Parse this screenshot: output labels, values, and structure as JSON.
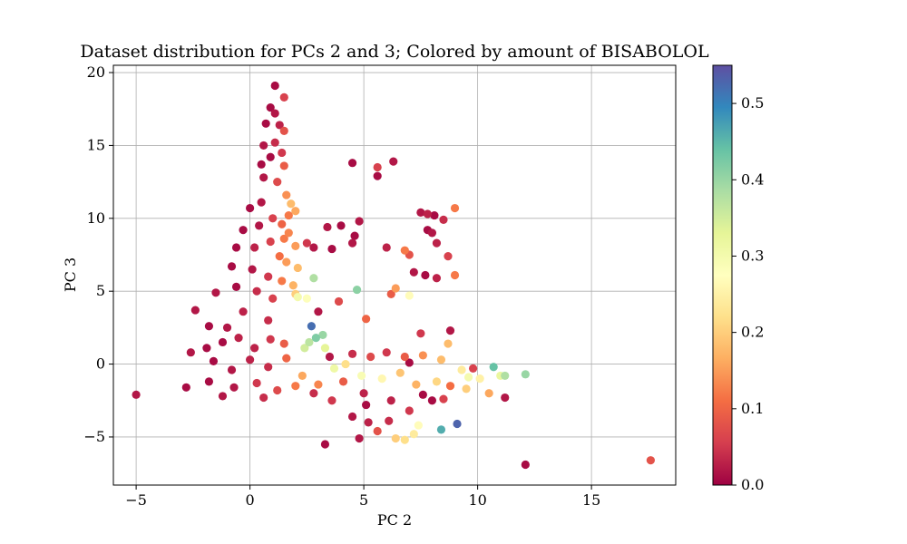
{
  "chart_data": {
    "type": "scatter",
    "title": "Dataset distribution for PCs 2 and 3; Colored by amount of BISABOLOL",
    "xlabel": "PC 2",
    "ylabel": "PC 3",
    "xlim": [
      -6,
      18.7
    ],
    "ylim": [
      -8.3,
      20.5
    ],
    "xticks": [
      -5,
      0,
      5,
      10,
      15
    ],
    "yticks": [
      -5,
      0,
      5,
      10,
      15,
      20
    ],
    "xtick_labels": [
      "−5",
      "0",
      "5",
      "10",
      "15"
    ],
    "ytick_labels": [
      "−5",
      "0",
      "5",
      "10",
      "15",
      "20"
    ],
    "grid": true,
    "colorbar": {
      "label": "",
      "range": [
        0,
        0.55
      ],
      "ticks": [
        0.0,
        0.1,
        0.2,
        0.3,
        0.4,
        0.5
      ],
      "tick_labels": [
        "0.0",
        "0.1",
        "0.2",
        "0.3",
        "0.4",
        "0.5"
      ],
      "colormap": "Spectral",
      "colors": [
        "#9e0142",
        "#d53e4f",
        "#f46d43",
        "#fdae61",
        "#fee08b",
        "#ffffbf",
        "#e6f598",
        "#abdda4",
        "#66c2a5",
        "#3288bd",
        "#5e4fa2"
      ]
    },
    "points": [
      [
        -5.0,
        -2.1,
        0.02
      ],
      [
        1.1,
        19.1,
        0.01
      ],
      [
        1.5,
        18.3,
        0.06
      ],
      [
        0.9,
        17.6,
        0.01
      ],
      [
        1.1,
        17.2,
        0.02
      ],
      [
        0.7,
        16.5,
        0.01
      ],
      [
        1.3,
        16.4,
        0.03
      ],
      [
        1.5,
        16.0,
        0.08
      ],
      [
        0.6,
        15.0,
        0.02
      ],
      [
        1.1,
        15.2,
        0.04
      ],
      [
        0.9,
        14.2,
        0.01
      ],
      [
        1.4,
        14.5,
        0.05
      ],
      [
        0.5,
        13.7,
        0.01
      ],
      [
        1.5,
        13.6,
        0.09
      ],
      [
        0.6,
        12.8,
        0.02
      ],
      [
        1.2,
        12.5,
        0.07
      ],
      [
        1.6,
        11.6,
        0.14
      ],
      [
        1.8,
        11.0,
        0.18
      ],
      [
        2.0,
        10.5,
        0.16
      ],
      [
        1.7,
        10.2,
        0.12
      ],
      [
        0.0,
        10.7,
        0.01
      ],
      [
        0.5,
        11.1,
        0.02
      ],
      [
        1.0,
        10.0,
        0.06
      ],
      [
        1.4,
        9.6,
        0.1
      ],
      [
        1.7,
        9.0,
        0.13
      ],
      [
        2.0,
        8.1,
        0.15
      ],
      [
        1.5,
        8.6,
        0.12
      ],
      [
        0.4,
        9.5,
        0.02
      ],
      [
        -0.3,
        9.2,
        0.01
      ],
      [
        -0.6,
        8.0,
        0.01
      ],
      [
        0.2,
        8.0,
        0.03
      ],
      [
        0.9,
        8.4,
        0.06
      ],
      [
        1.3,
        7.4,
        0.11
      ],
      [
        1.6,
        7.0,
        0.15
      ],
      [
        2.1,
        6.6,
        0.18
      ],
      [
        -0.8,
        6.7,
        0.01
      ],
      [
        0.1,
        6.5,
        0.02
      ],
      [
        0.8,
        6.0,
        0.05
      ],
      [
        1.4,
        5.7,
        0.12
      ],
      [
        1.9,
        5.4,
        0.17
      ],
      [
        -1.5,
        4.9,
        0.02
      ],
      [
        -0.6,
        5.3,
        0.01
      ],
      [
        0.3,
        5.0,
        0.04
      ],
      [
        1.0,
        4.5,
        0.06
      ],
      [
        2.0,
        4.8,
        0.2
      ],
      [
        -0.3,
        3.6,
        0.03
      ],
      [
        0.8,
        3.0,
        0.04
      ],
      [
        -2.4,
        3.7,
        0.02
      ],
      [
        -1.8,
        2.6,
        0.01
      ],
      [
        -1.0,
        2.5,
        0.02
      ],
      [
        -1.9,
        1.1,
        0.01
      ],
      [
        -1.2,
        1.5,
        0.01
      ],
      [
        -0.5,
        1.8,
        0.03
      ],
      [
        0.2,
        1.1,
        0.03
      ],
      [
        0.9,
        1.7,
        0.05
      ],
      [
        1.5,
        1.4,
        0.09
      ],
      [
        -2.6,
        0.8,
        0.02
      ],
      [
        -1.6,
        0.2,
        0.01
      ],
      [
        -0.8,
        -0.4,
        0.02
      ],
      [
        0.0,
        0.3,
        0.03
      ],
      [
        0.8,
        -0.2,
        0.04
      ],
      [
        1.6,
        0.4,
        0.1
      ],
      [
        -1.8,
        -1.2,
        0.01
      ],
      [
        -0.7,
        -1.6,
        0.02
      ],
      [
        0.3,
        -1.3,
        0.05
      ],
      [
        1.2,
        -1.8,
        0.07
      ],
      [
        2.0,
        -1.5,
        0.12
      ],
      [
        -2.8,
        -1.6,
        0.01
      ],
      [
        -1.2,
        -2.2,
        0.02
      ],
      [
        0.6,
        -2.3,
        0.04
      ],
      [
        2.7,
        2.6,
        0.52
      ],
      [
        3.0,
        3.6,
        0.02
      ],
      [
        2.8,
        5.9,
        0.38
      ],
      [
        3.2,
        2.0,
        0.4
      ],
      [
        2.9,
        1.8,
        0.42
      ],
      [
        2.6,
        1.5,
        0.37
      ],
      [
        2.4,
        1.1,
        0.35
      ],
      [
        3.3,
        1.1,
        0.33
      ],
      [
        2.1,
        4.6,
        0.3
      ],
      [
        2.5,
        4.5,
        0.28
      ],
      [
        2.8,
        8.0,
        0.02
      ],
      [
        2.5,
        8.3,
        0.05
      ],
      [
        3.4,
        9.4,
        0.02
      ],
      [
        3.6,
        7.9,
        0.01
      ],
      [
        4.0,
        9.5,
        0.01
      ],
      [
        3.9,
        4.3,
        0.07
      ],
      [
        4.7,
        5.1,
        0.41
      ],
      [
        4.8,
        9.8,
        0.02
      ],
      [
        4.6,
        8.8,
        0.01
      ],
      [
        4.5,
        8.3,
        0.02
      ],
      [
        4.5,
        13.8,
        0.01
      ],
      [
        5.6,
        13.5,
        0.06
      ],
      [
        6.3,
        13.9,
        0.02
      ],
      [
        5.6,
        12.9,
        0.01
      ],
      [
        5.1,
        3.1,
        0.1
      ],
      [
        6.0,
        8.0,
        0.03
      ],
      [
        6.4,
        5.2,
        0.15
      ],
      [
        6.2,
        4.8,
        0.09
      ],
      [
        7.0,
        4.7,
        0.27
      ],
      [
        6.8,
        7.8,
        0.12
      ],
      [
        7.0,
        7.5,
        0.08
      ],
      [
        7.5,
        10.4,
        0.02
      ],
      [
        7.8,
        10.3,
        0.03
      ],
      [
        8.1,
        10.2,
        0.01
      ],
      [
        8.5,
        9.9,
        0.04
      ],
      [
        9.0,
        10.7,
        0.12
      ],
      [
        7.8,
        9.2,
        0.01
      ],
      [
        8.0,
        9.0,
        0.02
      ],
      [
        8.2,
        8.3,
        0.03
      ],
      [
        7.2,
        6.3,
        0.02
      ],
      [
        7.7,
        6.1,
        0.01
      ],
      [
        8.2,
        5.9,
        0.03
      ],
      [
        8.7,
        7.4,
        0.06
      ],
      [
        9.0,
        6.1,
        0.12
      ],
      [
        8.8,
        2.3,
        0.02
      ],
      [
        7.5,
        2.1,
        0.05
      ],
      [
        8.7,
        1.4,
        0.18
      ],
      [
        5.2,
        -4.0,
        0.03
      ],
      [
        4.8,
        -5.1,
        0.02
      ],
      [
        3.3,
        -5.5,
        0.01
      ],
      [
        5.6,
        -4.6,
        0.08
      ],
      [
        6.1,
        -3.9,
        0.04
      ],
      [
        7.0,
        -3.2,
        0.05
      ],
      [
        7.4,
        -4.2,
        0.27
      ],
      [
        7.2,
        -4.8,
        0.24
      ],
      [
        6.8,
        -5.2,
        0.22
      ],
      [
        6.4,
        -5.1,
        0.2
      ],
      [
        8.4,
        -4.5,
        0.46
      ],
      [
        9.1,
        -4.1,
        0.53
      ],
      [
        8.0,
        -2.5,
        0.01
      ],
      [
        8.5,
        -2.4,
        0.06
      ],
      [
        9.5,
        -1.7,
        0.2
      ],
      [
        10.1,
        -1.0,
        0.25
      ],
      [
        10.5,
        -2.0,
        0.16
      ],
      [
        10.7,
        -0.2,
        0.44
      ],
      [
        11.0,
        -0.8,
        0.32
      ],
      [
        11.2,
        -0.8,
        0.38
      ],
      [
        12.1,
        -0.7,
        0.4
      ],
      [
        11.2,
        -2.3,
        0.02
      ],
      [
        12.1,
        -6.9,
        0.01
      ],
      [
        17.6,
        -6.6,
        0.08
      ],
      [
        4.5,
        -3.6,
        0.02
      ],
      [
        3.6,
        -2.5,
        0.05
      ],
      [
        2.8,
        -2.0,
        0.04
      ],
      [
        4.1,
        -1.2,
        0.09
      ],
      [
        5.1,
        -2.8,
        0.01
      ],
      [
        6.2,
        -2.5,
        0.03
      ],
      [
        7.6,
        -2.1,
        0.01
      ],
      [
        8.8,
        -1.5,
        0.11
      ],
      [
        9.6,
        -0.9,
        0.3
      ],
      [
        3.5,
        0.5,
        0.02
      ],
      [
        4.5,
        0.7,
        0.04
      ],
      [
        5.3,
        0.5,
        0.07
      ],
      [
        6.0,
        0.8,
        0.05
      ],
      [
        6.8,
        0.5,
        0.09
      ],
      [
        7.6,
        0.6,
        0.14
      ],
      [
        8.4,
        0.3,
        0.18
      ],
      [
        9.3,
        -0.4,
        0.24
      ],
      [
        2.3,
        -0.8,
        0.16
      ],
      [
        3.0,
        -1.4,
        0.13
      ],
      [
        4.2,
        0.0,
        0.22
      ],
      [
        5.8,
        -1.0,
        0.26
      ],
      [
        6.6,
        -0.6,
        0.19
      ],
      [
        7.3,
        -1.4,
        0.17
      ],
      [
        8.2,
        -1.2,
        0.21
      ],
      [
        5.0,
        -2.0,
        0.03
      ],
      [
        7.0,
        0.1,
        0.01
      ],
      [
        9.8,
        -0.3,
        0.06
      ],
      [
        3.7,
        -0.3,
        0.31
      ],
      [
        4.9,
        -0.8,
        0.29
      ]
    ]
  }
}
